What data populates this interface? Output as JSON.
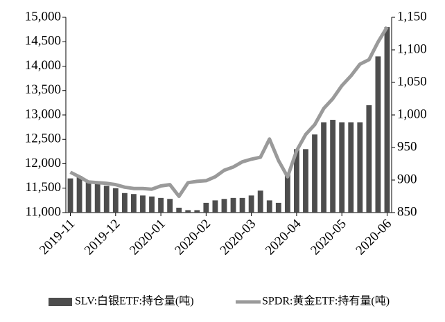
{
  "chart_data": {
    "type": "bar-line",
    "categories": [
      "2019-11",
      null,
      null,
      null,
      null,
      "2019-12",
      null,
      null,
      null,
      null,
      "2020-01",
      null,
      null,
      null,
      null,
      "2020-02",
      null,
      null,
      null,
      null,
      "2020-03",
      null,
      null,
      null,
      null,
      "2020-04",
      null,
      null,
      null,
      null,
      "2020-05",
      null,
      null,
      null,
      null,
      "2020-06"
    ],
    "series": [
      {
        "name": "SLV:白银ETF:持仓量(吨)",
        "type": "bar",
        "color": "#4d4d4d",
        "axis": "y",
        "values": [
          11700,
          11750,
          11650,
          11600,
          11550,
          11500,
          11400,
          11380,
          11350,
          11330,
          11300,
          11280,
          11100,
          11050,
          11050,
          11200,
          11250,
          11280,
          11300,
          11300,
          11350,
          11450,
          11250,
          11200,
          11800,
          12300,
          12300,
          12600,
          12850,
          12900,
          12850,
          12850,
          12850,
          13200,
          14200,
          14800
        ]
      },
      {
        "name": "SPDR:黄金ETF:持有量(吨)",
        "type": "line",
        "color": "#9a9a9a",
        "axis": "y2",
        "values": [
          912,
          905,
          897,
          896,
          895,
          893,
          889,
          887,
          887,
          886,
          891,
          893,
          875,
          896,
          898,
          899,
          905,
          915,
          920,
          928,
          932,
          935,
          963,
          930,
          905,
          945,
          970,
          985,
          1010,
          1025,
          1045,
          1060,
          1078,
          1085,
          1112,
          1135
        ]
      }
    ],
    "ylim": [
      11000,
      15000
    ],
    "yticks": [
      {
        "value": 11000,
        "label": "11,000"
      },
      {
        "value": 11500,
        "label": "11,500"
      },
      {
        "value": 12000,
        "label": "12,000"
      },
      {
        "value": 12500,
        "label": "12,500"
      },
      {
        "value": 13000,
        "label": "13,000"
      },
      {
        "value": 13500,
        "label": "13,500"
      },
      {
        "value": 14000,
        "label": "14,000"
      },
      {
        "value": 14500,
        "label": "14,500"
      },
      {
        "value": 15000,
        "label": "15,000"
      }
    ],
    "y2lim": [
      850,
      1150
    ],
    "y2ticks": [
      850,
      900,
      950,
      {
        "value": 1000,
        "label": "1,000"
      },
      {
        "value": 1050,
        "label": "1,050"
      },
      {
        "value": 1100,
        "label": "1,100"
      },
      {
        "value": 1150,
        "label": "1,150"
      }
    ],
    "legend": "bottom"
  }
}
